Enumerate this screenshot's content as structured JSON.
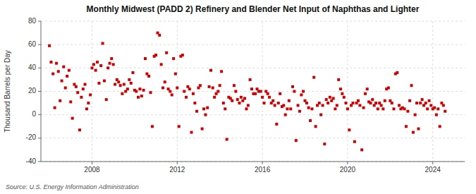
{
  "chart_data": {
    "type": "scatter",
    "title": "Monthly Midwest (PADD 2) Refinery and Blender Net Input of Naphthas and Lighter",
    "ylabel": "Thousand Barrels per Day",
    "annotations": [
      "Source: U.S. Energy Information Administration"
    ],
    "color": "#cc0000",
    "marker": "square",
    "grid": true,
    "xlim": [
      2005.6,
      2025.5
    ],
    "xticks": [
      2008,
      2012,
      2016,
      2020,
      2024
    ],
    "ylim": [
      -40,
      80
    ],
    "yticks": [
      -40,
      -20,
      0,
      20,
      40,
      60,
      80
    ],
    "x": [
      2006.0,
      2006.08,
      2006.17,
      2006.25,
      2006.33,
      2006.42,
      2006.5,
      2006.58,
      2006.67,
      2006.75,
      2006.83,
      2006.92,
      2007.0,
      2007.08,
      2007.17,
      2007.25,
      2007.33,
      2007.42,
      2007.5,
      2007.58,
      2007.67,
      2007.75,
      2007.83,
      2007.92,
      2008.0,
      2008.08,
      2008.17,
      2008.25,
      2008.33,
      2008.42,
      2008.5,
      2008.58,
      2008.67,
      2008.75,
      2008.83,
      2008.92,
      2009.0,
      2009.08,
      2009.17,
      2009.25,
      2009.33,
      2009.42,
      2009.5,
      2009.58,
      2009.67,
      2009.75,
      2009.83,
      2009.92,
      2010.0,
      2010.08,
      2010.17,
      2010.25,
      2010.33,
      2010.42,
      2010.5,
      2010.58,
      2010.67,
      2010.75,
      2010.83,
      2010.92,
      2011.0,
      2011.08,
      2011.17,
      2011.25,
      2011.33,
      2011.42,
      2011.5,
      2011.58,
      2011.67,
      2011.75,
      2011.83,
      2011.92,
      2012.0,
      2012.08,
      2012.17,
      2012.25,
      2012.33,
      2012.42,
      2012.5,
      2012.58,
      2012.67,
      2012.75,
      2012.83,
      2012.92,
      2013.0,
      2013.08,
      2013.17,
      2013.25,
      2013.33,
      2013.42,
      2013.5,
      2013.58,
      2013.67,
      2013.75,
      2013.83,
      2013.92,
      2014.0,
      2014.08,
      2014.17,
      2014.25,
      2014.33,
      2014.42,
      2014.5,
      2014.58,
      2014.67,
      2014.75,
      2014.83,
      2014.92,
      2015.0,
      2015.08,
      2015.17,
      2015.25,
      2015.33,
      2015.42,
      2015.5,
      2015.58,
      2015.67,
      2015.75,
      2015.83,
      2015.92,
      2016.0,
      2016.08,
      2016.17,
      2016.25,
      2016.33,
      2016.42,
      2016.5,
      2016.58,
      2016.67,
      2016.75,
      2016.83,
      2016.92,
      2017.0,
      2017.08,
      2017.17,
      2017.25,
      2017.33,
      2017.42,
      2017.5,
      2017.58,
      2017.67,
      2017.75,
      2017.83,
      2017.92,
      2018.0,
      2018.08,
      2018.17,
      2018.25,
      2018.33,
      2018.42,
      2018.5,
      2018.58,
      2018.67,
      2018.75,
      2018.83,
      2018.92,
      2019.0,
      2019.08,
      2019.17,
      2019.25,
      2019.33,
      2019.42,
      2019.5,
      2019.58,
      2019.67,
      2019.75,
      2019.83,
      2019.92,
      2020.0,
      2020.08,
      2020.17,
      2020.25,
      2020.33,
      2020.42,
      2020.5,
      2020.58,
      2020.67,
      2020.75,
      2020.83,
      2020.92,
      2021.0,
      2021.08,
      2021.17,
      2021.25,
      2021.33,
      2021.42,
      2021.5,
      2021.58,
      2021.67,
      2021.75,
      2021.83,
      2021.92,
      2022.0,
      2022.08,
      2022.17,
      2022.25,
      2022.33,
      2022.42,
      2022.5,
      2022.58,
      2022.67,
      2022.75,
      2022.83,
      2022.92,
      2023.0,
      2023.08,
      2023.17,
      2023.25,
      2023.33,
      2023.42,
      2023.5,
      2023.58,
      2023.67,
      2023.75,
      2023.83,
      2023.92,
      2024.0,
      2024.08,
      2024.17,
      2024.25,
      2024.33,
      2024.42,
      2024.5,
      2024.58
    ],
    "values": [
      59,
      45,
      35,
      6,
      44,
      37,
      12,
      29,
      41,
      23,
      33,
      38,
      11,
      -3,
      26,
      24,
      19,
      -13,
      15,
      22,
      26,
      5,
      10,
      17,
      40,
      43,
      38,
      45,
      27,
      42,
      61,
      29,
      13,
      40,
      44,
      48,
      43,
      26,
      30,
      28,
      25,
      18,
      26,
      20,
      22,
      30,
      27,
      36,
      21,
      20,
      15,
      22,
      16,
      21,
      48,
      35,
      33,
      19,
      -10,
      50,
      51,
      70,
      68,
      43,
      23,
      28,
      53,
      22,
      20,
      17,
      48,
      35,
      23,
      -10,
      50,
      51,
      20,
      15,
      24,
      22,
      -15,
      18,
      10,
      3,
      23,
      25,
      -12,
      5,
      0,
      6,
      24,
      38,
      23,
      15,
      18,
      20,
      25,
      37,
      10,
      5,
      -21,
      15,
      14,
      12,
      25,
      20,
      13,
      10,
      15,
      12,
      14,
      5,
      8,
      30,
      22,
      18,
      18,
      22,
      20,
      20,
      15,
      10,
      20,
      18,
      15,
      10,
      12,
      8,
      -8,
      10,
      18,
      7,
      8,
      0,
      5,
      12,
      5,
      24,
      20,
      -22,
      8,
      3,
      17,
      20,
      12,
      10,
      6,
      -5,
      5,
      32,
      -10,
      8,
      10,
      0,
      8,
      -25,
      13,
      10,
      15,
      12,
      14,
      5,
      8,
      30,
      22,
      18,
      15,
      10,
      5,
      -13,
      8,
      10,
      -23,
      10,
      12,
      8,
      -30,
      6,
      18,
      22,
      11,
      10,
      13,
      8,
      10,
      5,
      10,
      8,
      5,
      12,
      22,
      23,
      12,
      10,
      5,
      35,
      36,
      8,
      5,
      6,
      5,
      -10,
      3,
      12,
      25,
      -15,
      0,
      10,
      -12,
      10,
      13,
      8,
      10,
      5,
      12,
      8,
      5,
      6,
      0,
      5,
      -10,
      10,
      8,
      3
    ]
  }
}
